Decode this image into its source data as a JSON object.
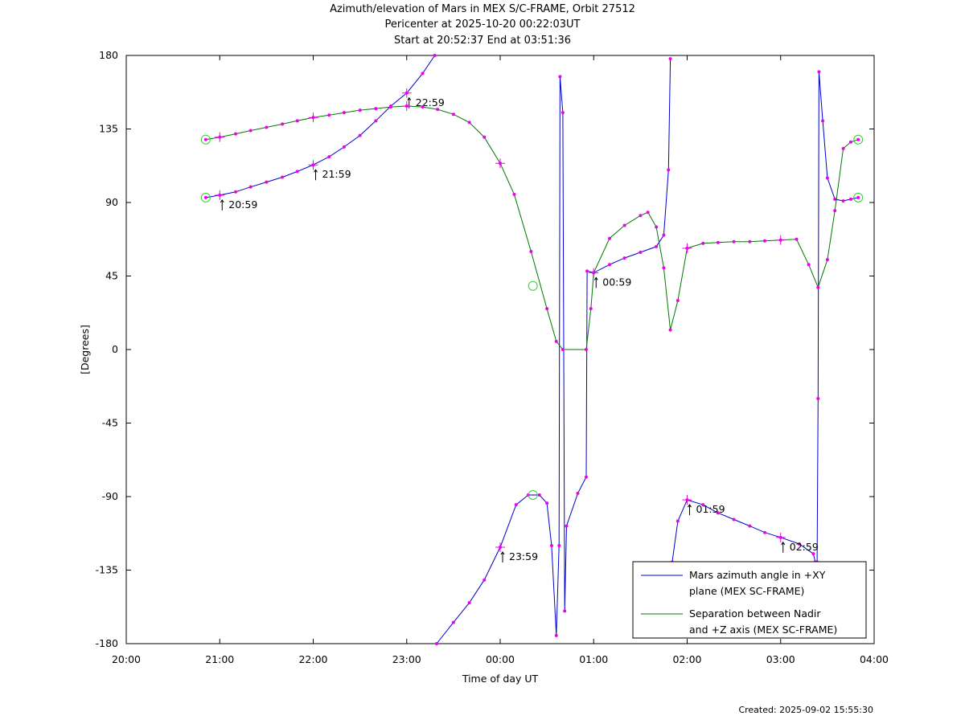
{
  "chart_data": {
    "type": "line",
    "title": "Azimuth/elevation of Mars in MEX S/C-FRAME,  Orbit 27512",
    "subtitle_lines": [
      "Pericenter at 2025-10-20 00:22:03UT",
      "Start at 20:52:37 End at 03:51:36"
    ],
    "xlabel": "Time of day UT",
    "ylabel": "[Degrees]",
    "x_unit": "hours since 20:00 UT",
    "xlim": [
      0,
      8
    ],
    "ylim": [
      -180,
      180
    ],
    "x_tick_labels": [
      "20:00",
      "21:00",
      "22:00",
      "23:00",
      "00:00",
      "01:00",
      "02:00",
      "03:00",
      "04:00"
    ],
    "y_ticks": [
      180,
      135,
      90,
      45,
      0,
      -45,
      -90,
      -135,
      -180
    ],
    "legend_position": "bottom-right",
    "series": [
      {
        "name": "Mars azimuth angle in +XY plane (MEX SC-FRAME)",
        "legend_lines": [
          "Mars azimuth angle in +XY",
          "plane (MEX SC-FRAME)"
        ],
        "color": "#0000cc",
        "segments": [
          [
            [
              0.85,
              93
            ],
            [
              1.0,
              94.5
            ],
            [
              1.17,
              96.5
            ],
            [
              1.33,
              99.5
            ],
            [
              1.5,
              102.5
            ],
            [
              1.67,
              105.5
            ],
            [
              1.83,
              109
            ],
            [
              2.0,
              113
            ],
            [
              2.17,
              118
            ],
            [
              2.33,
              124
            ],
            [
              2.5,
              131
            ],
            [
              2.67,
              140
            ],
            [
              2.83,
              149
            ],
            [
              3.0,
              157
            ],
            [
              3.17,
              169
            ],
            [
              3.3,
              180
            ]
          ],
          [
            [
              3.32,
              -180
            ],
            [
              3.5,
              -167
            ],
            [
              3.67,
              -155
            ],
            [
              3.83,
              -141
            ],
            [
              4.0,
              -121
            ],
            [
              4.17,
              -95
            ],
            [
              4.3,
              -89
            ],
            [
              4.42,
              -89
            ],
            [
              4.5,
              -94
            ],
            [
              4.55,
              -120
            ],
            [
              4.6,
              -175
            ],
            [
              4.63,
              -120
            ],
            [
              4.64,
              167
            ],
            [
              4.67,
              145
            ],
            [
              4.69,
              -160
            ],
            [
              4.71,
              -108
            ],
            [
              4.83,
              -88
            ],
            [
              4.92,
              -78
            ],
            [
              4.93,
              48
            ],
            [
              5.0,
              47
            ],
            [
              5.17,
              52
            ],
            [
              5.33,
              56
            ],
            [
              5.5,
              59.5
            ],
            [
              5.67,
              63
            ],
            [
              5.75,
              70
            ],
            [
              5.8,
              110
            ],
            [
              5.82,
              178
            ]
          ],
          [
            [
              5.84,
              -130
            ],
            [
              5.9,
              -105
            ],
            [
              6.0,
              -92
            ],
            [
              6.17,
              -95
            ],
            [
              6.33,
              -100
            ],
            [
              6.5,
              -104
            ],
            [
              6.67,
              -108
            ],
            [
              6.83,
              -112
            ],
            [
              7.0,
              -115
            ],
            [
              7.2,
              -119
            ],
            [
              7.35,
              -125
            ],
            [
              7.37,
              -130
            ]
          ],
          [
            [
              7.39,
              -130
            ],
            [
              7.4,
              -30
            ],
            [
              7.41,
              170
            ],
            [
              7.45,
              140
            ],
            [
              7.5,
              105
            ],
            [
              7.58,
              92
            ],
            [
              7.67,
              91
            ],
            [
              7.75,
              92
            ],
            [
              7.83,
              93
            ]
          ]
        ],
        "hour_marks": [
          [
            1.0,
            94.5
          ],
          [
            2.0,
            113
          ],
          [
            3.0,
            157
          ],
          [
            4.0,
            -121
          ],
          [
            5.0,
            47
          ],
          [
            6.0,
            -92
          ],
          [
            7.0,
            -115
          ]
        ],
        "hour_labels": [
          "20:59",
          "21:59",
          "22:59",
          "23:59",
          "00:59",
          "01:59",
          "02:59"
        ]
      },
      {
        "name": "Separation between Nadir and +Z axis (MEX SC-FRAME)",
        "legend_lines": [
          "Separation between Nadir",
          "and +Z axis (MEX SC-FRAME)"
        ],
        "color": "#007700",
        "segments": [
          [
            [
              0.85,
              128.5
            ],
            [
              1.0,
              130
            ],
            [
              1.17,
              132
            ],
            [
              1.33,
              134
            ],
            [
              1.5,
              136
            ],
            [
              1.67,
              138
            ],
            [
              1.83,
              140
            ],
            [
              2.0,
              142
            ],
            [
              2.17,
              143.5
            ],
            [
              2.33,
              145
            ],
            [
              2.5,
              146.5
            ],
            [
              2.67,
              147.5
            ],
            [
              2.83,
              148.5
            ],
            [
              3.0,
              149
            ],
            [
              3.17,
              148.5
            ],
            [
              3.33,
              147
            ],
            [
              3.5,
              144
            ],
            [
              3.67,
              139
            ],
            [
              3.83,
              130
            ],
            [
              4.0,
              114
            ],
            [
              4.15,
              95
            ],
            [
              4.33,
              60
            ],
            [
              4.5,
              25
            ],
            [
              4.6,
              5
            ],
            [
              4.67,
              0
            ],
            [
              4.92,
              0
            ],
            [
              4.97,
              25
            ],
            [
              5.0,
              47
            ],
            [
              5.17,
              68
            ],
            [
              5.33,
              76
            ],
            [
              5.5,
              82
            ],
            [
              5.58,
              84
            ],
            [
              5.67,
              75
            ],
            [
              5.75,
              50
            ],
            [
              5.82,
              12
            ],
            [
              5.9,
              30
            ],
            [
              6.0,
              62
            ],
            [
              6.17,
              65
            ],
            [
              6.33,
              65.5
            ],
            [
              6.5,
              66
            ],
            [
              6.67,
              66
            ],
            [
              6.83,
              66.5
            ],
            [
              7.0,
              67
            ],
            [
              7.17,
              67.5
            ],
            [
              7.3,
              52
            ],
            [
              7.4,
              38
            ],
            [
              7.5,
              55
            ],
            [
              7.58,
              85
            ],
            [
              7.67,
              123
            ],
            [
              7.75,
              127
            ],
            [
              7.83,
              128.5
            ]
          ]
        ],
        "hour_marks": [
          [
            1.0,
            130
          ],
          [
            2.0,
            142
          ],
          [
            3.0,
            149
          ],
          [
            4.0,
            114
          ],
          [
            6.0,
            62
          ],
          [
            7.0,
            67
          ]
        ]
      }
    ],
    "circle_markers": [
      [
        0.85,
        93
      ],
      [
        0.85,
        128.5
      ],
      [
        7.83,
        93
      ],
      [
        7.83,
        128.5
      ],
      [
        4.35,
        39
      ],
      [
        4.35,
        -89
      ]
    ],
    "circle_color": "#33cc33",
    "dot_color": "#ee00ee"
  },
  "footer": {
    "created": "Created: 2025-09-02 15:55:30"
  }
}
